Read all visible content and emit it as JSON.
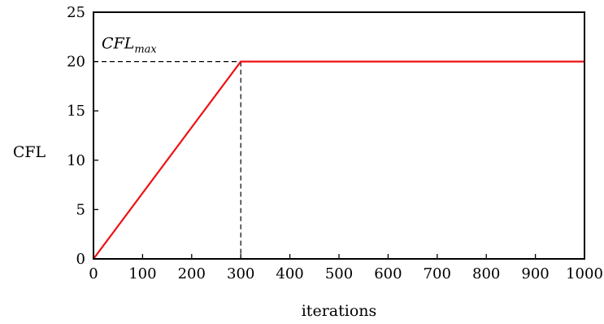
{
  "chart_data": {
    "type": "line",
    "xlabel": "iterations",
    "ylabel": "CFL",
    "xlim": [
      0,
      1000
    ],
    "ylim": [
      0,
      25
    ],
    "xticks": [
      "0",
      "100",
      "200",
      "300",
      "400",
      "500",
      "600",
      "700",
      "800",
      "900",
      "1000"
    ],
    "yticks": [
      "0",
      "5",
      "10",
      "15",
      "20",
      "25"
    ],
    "series": [
      {
        "color": "#ee1111",
        "x": [
          0,
          300,
          1000
        ],
        "y": [
          0,
          20,
          20
        ]
      }
    ],
    "annotation": {
      "main": "CFL",
      "subscript": "max",
      "x": 300,
      "y": 20
    },
    "grid": false,
    "legend": "none"
  }
}
